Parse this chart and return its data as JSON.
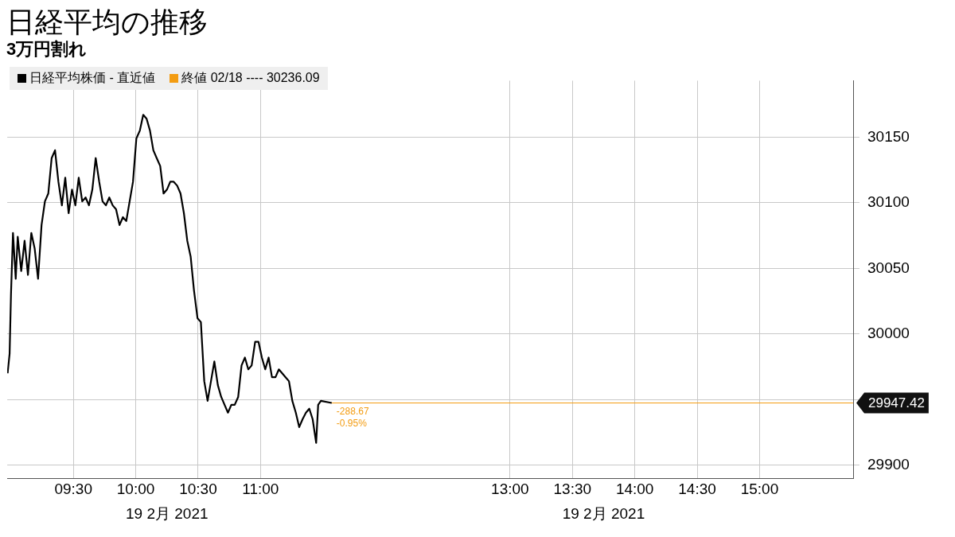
{
  "chart_data": {
    "type": "line",
    "title": "日経平均の推移",
    "subtitle": "3万円割れ",
    "x": [
      8.973,
      8.989,
      9.0,
      9.016,
      9.038,
      9.054,
      9.082,
      9.109,
      9.136,
      9.163,
      9.19,
      9.217,
      9.245,
      9.272,
      9.299,
      9.326,
      9.353,
      9.38,
      9.408,
      9.435,
      9.462,
      9.489,
      9.516,
      9.543,
      9.571,
      9.598,
      9.625,
      9.652,
      9.679,
      9.707,
      9.734,
      9.761,
      9.788,
      9.815,
      9.842,
      9.87,
      9.897,
      9.924,
      9.951,
      9.978,
      10.005,
      10.033,
      10.06,
      10.087,
      10.114,
      10.141,
      10.168,
      10.196,
      10.223,
      10.25,
      10.277,
      10.304,
      10.332,
      10.359,
      10.386,
      10.413,
      10.44,
      10.467,
      10.495,
      10.522,
      10.549,
      10.576,
      10.603,
      10.63,
      10.658,
      10.685,
      10.712,
      10.739,
      10.766,
      10.793,
      10.821,
      10.848,
      10.875,
      10.902,
      10.929,
      10.957,
      10.984,
      11.011,
      11.038,
      11.065,
      11.092,
      11.12,
      11.147,
      11.174,
      11.201,
      11.228,
      11.255,
      11.283,
      11.31,
      11.337,
      11.364,
      11.391,
      11.418,
      11.446,
      11.462,
      11.484,
      11.571
    ],
    "series": [
      {
        "name": "日経平均株価 - 直近値",
        "color": "#000000",
        "values": [
          29970,
          29985,
          30030,
          30077,
          30042,
          30074,
          30048,
          30071,
          30045,
          30077,
          30065,
          30042,
          30083,
          30101,
          30107,
          30134,
          30140,
          30116,
          30098,
          30119,
          30092,
          30110,
          30098,
          30119,
          30101,
          30104,
          30098,
          30110,
          30134,
          30116,
          30101,
          30098,
          30104,
          30098,
          30095,
          30083,
          30089,
          30086,
          30101,
          30116,
          30149,
          30155,
          30167,
          30164,
          30155,
          30140,
          30134,
          30128,
          30107,
          30110,
          30116,
          30116,
          30113,
          30107,
          30092,
          30071,
          30059,
          30033,
          30012,
          30009,
          29964,
          29949,
          29964,
          29979,
          29961,
          29952,
          29946,
          29940,
          29946,
          29946,
          29952,
          29976,
          29982,
          29973,
          29976,
          29994,
          29994,
          29982,
          29973,
          29982,
          29967,
          29967,
          29973,
          29970,
          29967,
          29964,
          29949,
          29940,
          29929,
          29935,
          29940,
          29943,
          29935,
          29917,
          29946,
          29949,
          29947.42
        ]
      }
    ],
    "xlim": [
      8.97,
      15.75
    ],
    "xticks": [
      {
        "value": 9.5,
        "label": "09:30"
      },
      {
        "value": 10,
        "label": "10:00"
      },
      {
        "value": 10.5,
        "label": "10:30"
      },
      {
        "value": 11,
        "label": "11:00"
      },
      {
        "value": 13,
        "label": "13:00"
      },
      {
        "value": 13.5,
        "label": "13:30"
      },
      {
        "value": 14,
        "label": "14:00"
      },
      {
        "value": 14.5,
        "label": "14:30"
      },
      {
        "value": 15,
        "label": "15:00"
      }
    ],
    "ylim": [
      29890,
      30193
    ],
    "yticks": [
      29900,
      {
        "value": 29950,
        "label": null
      },
      30000,
      30050,
      30100,
      30150
    ],
    "ref_lines": [
      {
        "axis": "y",
        "value": 29947.42,
        "label": "29947.42",
        "color": "#f39c12"
      }
    ],
    "annotations": [
      "19 2月 2021",
      "19 2月 2021",
      "終値 02/18 ---- 30236.09",
      {
        "text": "-288.67",
        "x": 11.571,
        "y": 29947.42
      },
      {
        "text": "-0.95%",
        "x": 11.571,
        "y": 29947.42
      }
    ],
    "grid": true,
    "legend": "top left",
    "marker": "none",
    "line_style": "solid"
  }
}
